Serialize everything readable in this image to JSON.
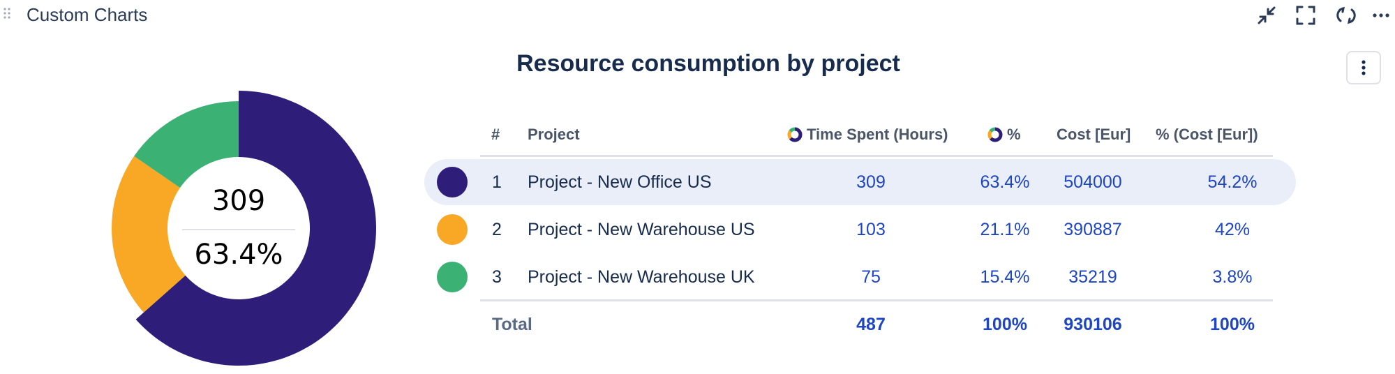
{
  "panel": {
    "title": "Custom Charts",
    "icons": [
      "drag-handle-icon",
      "collapse-icon",
      "fullscreen-icon",
      "refresh-icon",
      "more-horizontal-icon"
    ]
  },
  "chart_title": "Resource consumption by project",
  "center": {
    "value": "309",
    "percent": "63.4%"
  },
  "table": {
    "headers": {
      "index": "#",
      "project": "Project",
      "time": "Time Spent (Hours)",
      "pct": "%",
      "cost": "Cost [Eur]",
      "cost_pct": "% (Cost [Eur])"
    },
    "rows": [
      {
        "index": "1",
        "project": "Project - New Office US",
        "time": "309",
        "pct": "63.4%",
        "cost": "504000",
        "cost_pct": "54.2%"
      },
      {
        "index": "2",
        "project": "Project - New Warehouse US",
        "time": "103",
        "pct": "21.1%",
        "cost": "390887",
        "cost_pct": "42%"
      },
      {
        "index": "3",
        "project": "Project - New Warehouse UK",
        "time": "75",
        "pct": "15.4%",
        "cost": "35219",
        "cost_pct": "3.8%"
      }
    ],
    "total": {
      "label": "Total",
      "time": "487",
      "pct": "100%",
      "cost": "930106",
      "cost_pct": "100%"
    }
  },
  "chart_data": {
    "type": "pie",
    "categories": [
      "Project - New Office US",
      "Project - New Warehouse US",
      "Project - New Warehouse UK"
    ],
    "values": [
      309,
      103,
      75
    ],
    "colors": [
      "#2e1e7a",
      "#f9a825",
      "#3bb273"
    ],
    "highlighted": "Project - New Office US",
    "donut": true
  }
}
